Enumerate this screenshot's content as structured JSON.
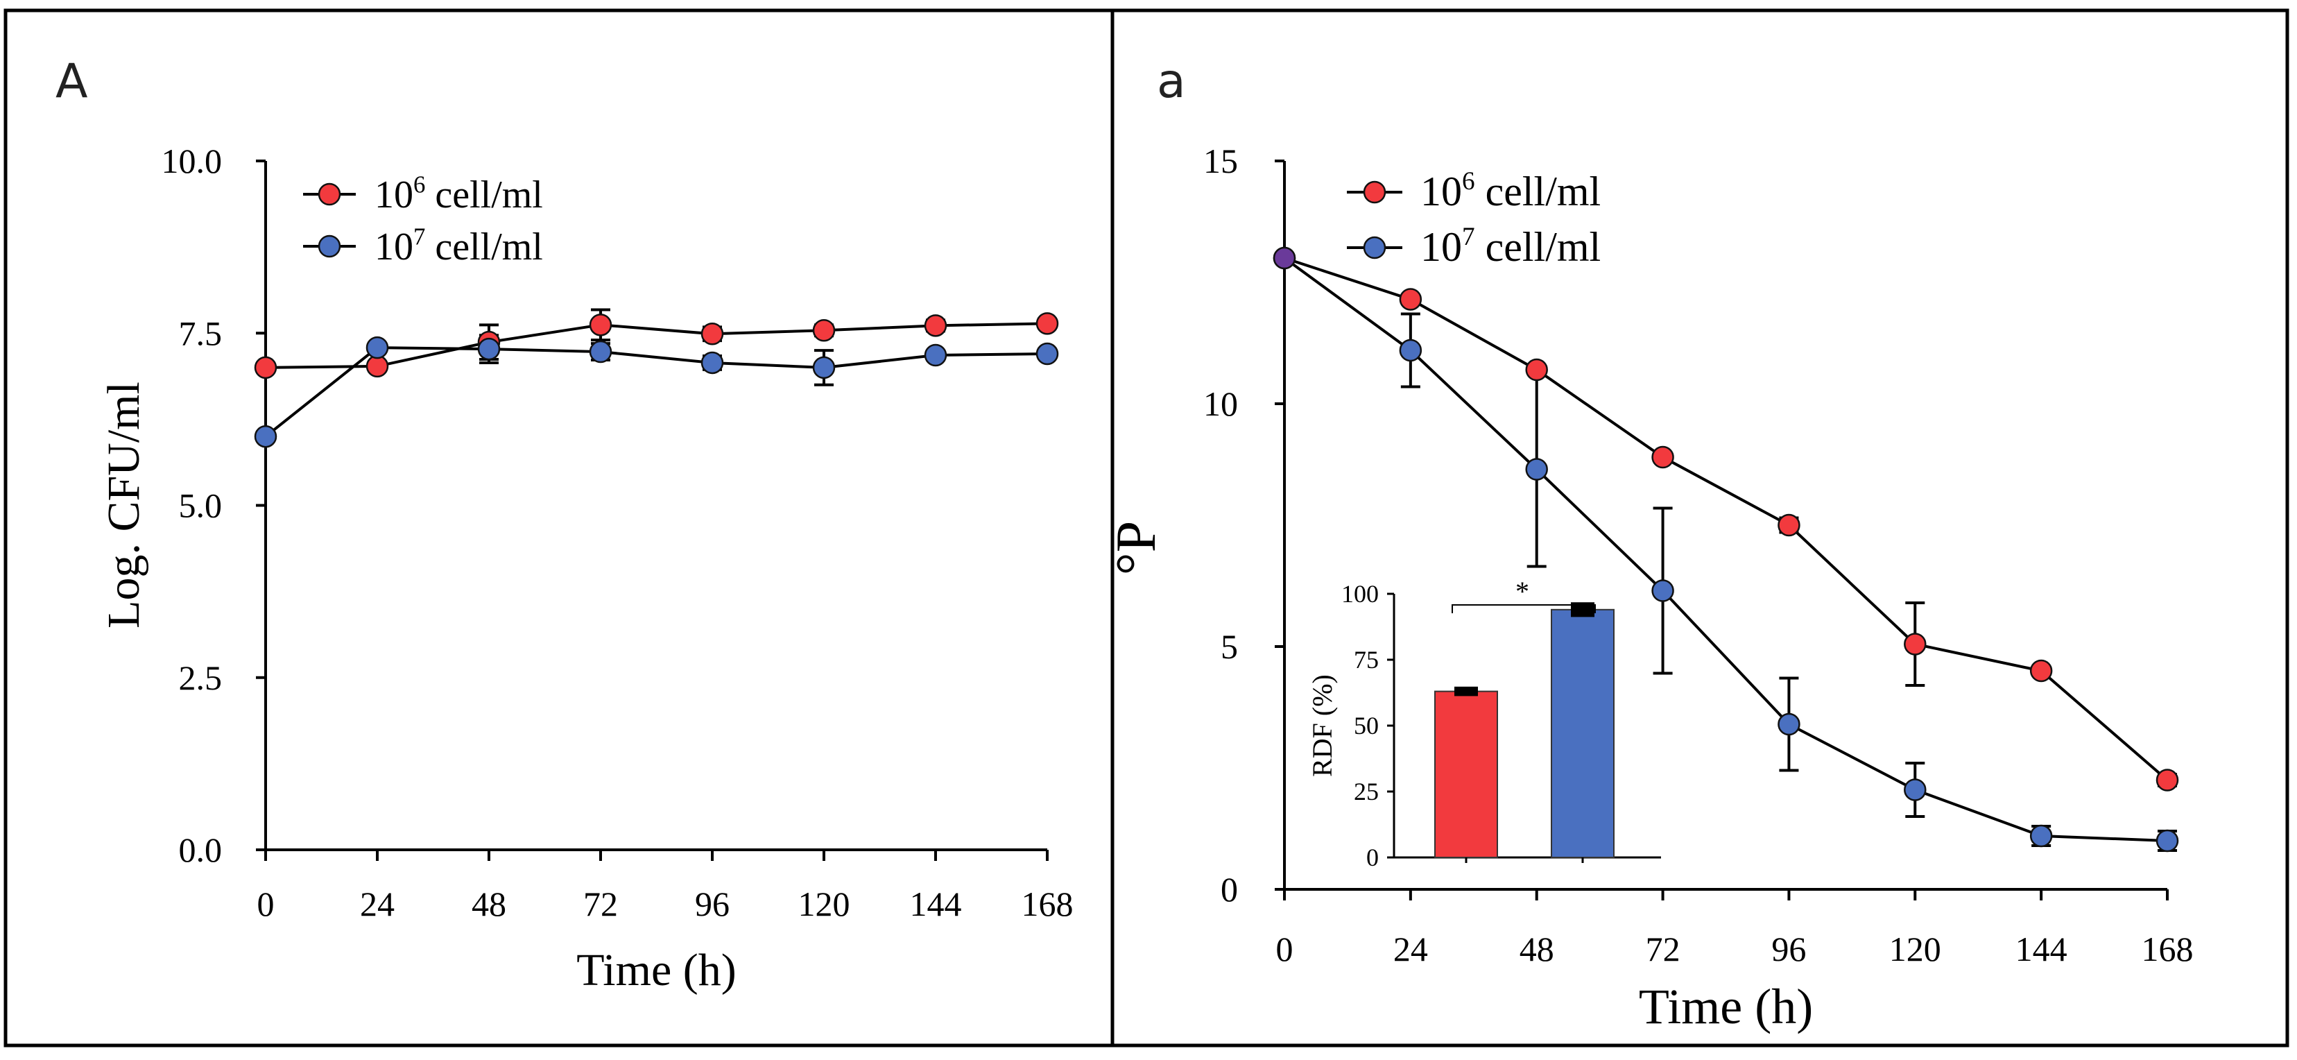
{
  "colors": {
    "series1": "#f23a3e",
    "series2": "#4a70c0",
    "start_point": "#6a3a9a",
    "axis": "#000000"
  },
  "chart_data": [
    {
      "panel_label": "A",
      "type": "line",
      "xlabel": "Time (h)",
      "ylabel": "Log. CFU/ml",
      "xlim": [
        0,
        168
      ],
      "ylim": [
        0,
        10
      ],
      "x_ticks": [
        0,
        24,
        48,
        72,
        96,
        120,
        144,
        168
      ],
      "x_tick_labels": [
        "0",
        "24",
        "48",
        "72",
        "96",
        "120",
        "144",
        "168"
      ],
      "y_ticks": [
        0,
        2.5,
        5,
        7.5,
        10
      ],
      "y_tick_labels": [
        "0.0",
        "2.5",
        "5.0",
        "7.5",
        "10.0"
      ],
      "grid": false,
      "legend_position": "top-left",
      "x": [
        0,
        24,
        48,
        72,
        96,
        120,
        144,
        168
      ],
      "series": [
        {
          "name": "10^6 cell/ml",
          "base": "10",
          "exp": "6",
          "unit": " cell/ml",
          "color": "#f23a3e",
          "values": [
            7.0,
            7.02,
            7.37,
            7.62,
            7.49,
            7.54,
            7.61,
            7.64
          ],
          "errors": [
            0,
            0,
            0.25,
            0.22,
            0.1,
            0.08,
            0.08,
            0.05
          ]
        },
        {
          "name": "10^7 cell/ml",
          "base": "10",
          "exp": "7",
          "unit": " cell/ml",
          "color": "#4a70c0",
          "values": [
            6.0,
            7.29,
            7.27,
            7.23,
            7.07,
            7.0,
            7.18,
            7.2
          ],
          "errors": [
            0,
            0.05,
            0.2,
            0.12,
            0.1,
            0.25,
            0.05,
            0.05
          ]
        }
      ]
    },
    {
      "panel_label": "a",
      "type": "line",
      "xlabel": "Time (h)",
      "ylabel": "°P",
      "xlim": [
        0,
        168
      ],
      "ylim": [
        0,
        15
      ],
      "x_ticks": [
        0,
        24,
        48,
        72,
        96,
        120,
        144,
        168
      ],
      "x_tick_labels": [
        "0",
        "24",
        "48",
        "72",
        "96",
        "120",
        "144",
        "168"
      ],
      "y_ticks": [
        0,
        5,
        10,
        15
      ],
      "y_tick_labels": [
        "0",
        "5",
        "10",
        "15"
      ],
      "grid": false,
      "legend_position": "top-left",
      "x": [
        0,
        24,
        48,
        72,
        96,
        120,
        144,
        168
      ],
      "series": [
        {
          "name": "10^6 cell/ml",
          "base": "10",
          "exp": "6",
          "unit": " cell/ml",
          "color": "#f23a3e",
          "values": [
            13.0,
            12.15,
            10.7,
            8.9,
            7.5,
            5.05,
            4.5,
            2.25
          ],
          "errors": [
            0,
            0.05,
            0.05,
            0.05,
            0.15,
            0.85,
            0.08,
            0.12
          ]
        },
        {
          "name": "10^7 cell/ml",
          "base": "10",
          "exp": "7",
          "unit": " cell/ml",
          "color": "#4a70c0",
          "values": [
            13.0,
            11.1,
            8.65,
            6.15,
            3.4,
            2.05,
            1.1,
            1.0
          ],
          "errors": [
            0,
            0.75,
            2.0,
            1.7,
            0.95,
            0.55,
            0.2,
            0.2
          ]
        }
      ],
      "inset": {
        "type": "bar",
        "ylabel": "RDF  (%)",
        "ylim": [
          0,
          100
        ],
        "y_ticks": [
          0,
          25,
          50,
          75,
          100
        ],
        "y_tick_labels": [
          "0",
          "25",
          "50",
          "75",
          "100"
        ],
        "categories": [
          "10^6 cell/ml",
          "10^7 cell/ml"
        ],
        "values": [
          63,
          94
        ],
        "errors": [
          1,
          2
        ],
        "colors": [
          "#f23a3e",
          "#4a70c0"
        ],
        "significance": "*"
      }
    }
  ]
}
